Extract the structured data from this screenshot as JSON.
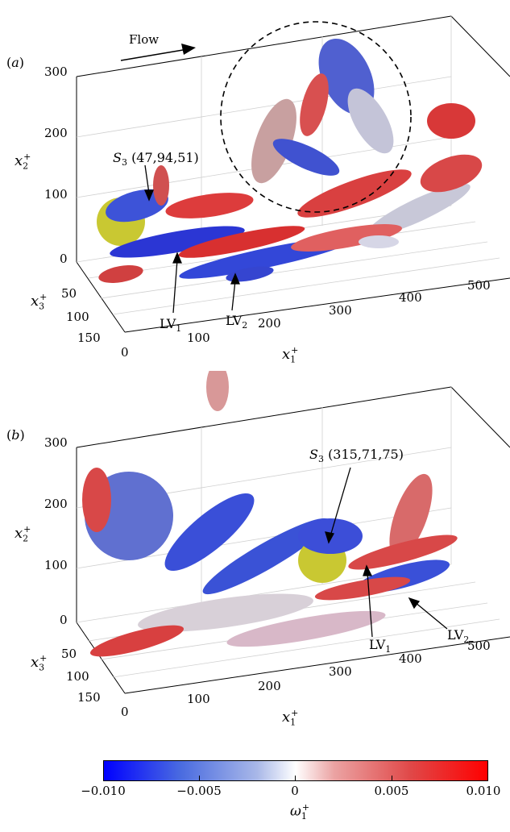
{
  "flow_label": "Flow",
  "panel_a": {
    "tag": "(a)",
    "tag_letter": "a",
    "x2_ticks": [
      "300",
      "200",
      "100",
      "0"
    ],
    "x3_ticks": [
      "50",
      "100",
      "150"
    ],
    "x1_ticks": [
      "0",
      "100",
      "200",
      "300",
      "400",
      "500"
    ],
    "x1_label": "x",
    "x2_label": "x",
    "x3_label": "x",
    "sub1": "1",
    "sub2": "2",
    "sub3": "3",
    "sup": "+",
    "s3_name": "S",
    "s3_sub": "3",
    "s3_coords": "(47,94,51)",
    "lv1": "LV",
    "lv1_sub": "1",
    "lv2": "LV",
    "lv2_sub": "2"
  },
  "panel_b": {
    "tag": "(b)",
    "tag_letter": "b",
    "x2_ticks": [
      "300",
      "200",
      "100",
      "0"
    ],
    "x3_ticks": [
      "50",
      "100",
      "150"
    ],
    "x1_ticks": [
      "0",
      "100",
      "200",
      "300",
      "400",
      "500"
    ],
    "s3_name": "S",
    "s3_sub": "3",
    "s3_coords": "(315,71,75)",
    "lv1": "LV",
    "lv1_sub": "1",
    "lv2": "LV",
    "lv2_sub": "2"
  },
  "colorbar": {
    "ticks": [
      "−0.010",
      "−0.005",
      "0",
      "0.005",
      "0.010"
    ],
    "label": "ω",
    "label_sub": "1",
    "label_sup": "+",
    "min_color": "#0000ff",
    "mid_color": "#ffffff",
    "max_color": "#ff0000"
  }
}
